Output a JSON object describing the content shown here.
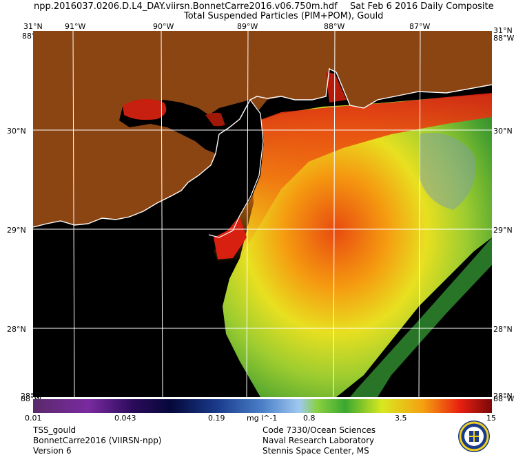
{
  "header": {
    "filename": "npp.2016037.0206.D.L4_DAY.viirsn.BonnetCarre2016.v06.750m.hdf",
    "date": "Sat Feb  6 2016 Daily Composite",
    "product_title": "Total Suspended Particles (PIM+POM), Gould"
  },
  "map": {
    "lon_labels": [
      "91°W",
      "90°W",
      "89°W",
      "88°W",
      "87°W"
    ],
    "lat_labels": [
      "30°N",
      "29°N",
      "28°N"
    ],
    "corner_top_left_lat": "31°N",
    "corner_top_right_lat": "31°N",
    "corner_bottom_left_lat": "28°N",
    "corner_bottom_right_lat": "28°N",
    "edge_lon_west": "88°W",
    "edge_lon_east": "88°W",
    "edge_bottom_west": "88°W",
    "edge_bottom_east": "88°W",
    "colors": {
      "land": "#8b4513",
      "no_data": "#000000",
      "graticule": "#ffffff",
      "coastline": "#ffffff"
    }
  },
  "colorbar": {
    "ticks": [
      "0.01",
      "0.043",
      "0.19",
      "0.8",
      "3.5",
      "15"
    ],
    "unit": "mg l^-1",
    "scale": "log",
    "range": [
      0.01,
      15
    ]
  },
  "footer": {
    "left": [
      "TSS_gould",
      "BonnetCarre2016 (VIIRSN-npp)",
      "Version 6"
    ],
    "right": [
      "Code 7330/Ocean Sciences",
      "Naval Research Laboratory",
      "Stennis Space Center, MS"
    ]
  }
}
